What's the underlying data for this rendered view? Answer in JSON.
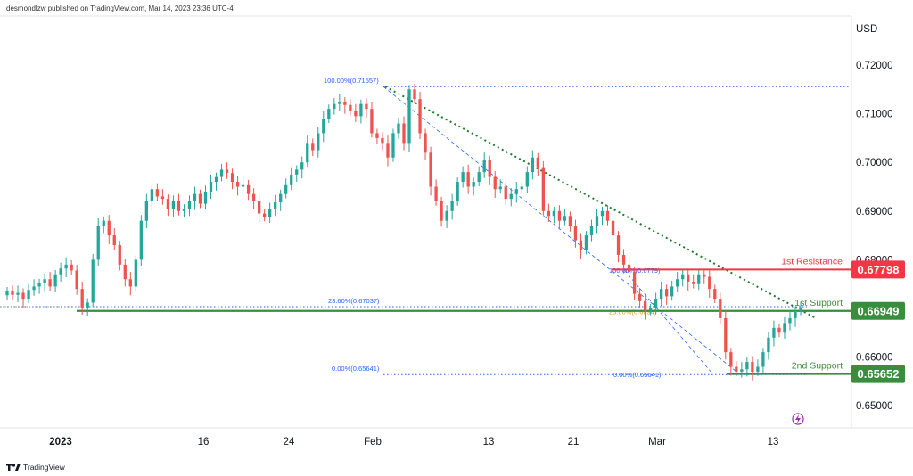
{
  "header": {
    "text": "desmondlzw published on TradingView.com, Mar 14, 2023 23:36 UTC-4"
  },
  "footer": {
    "logo_text": "TradingView"
  },
  "chart_data": {
    "type": "candlestick",
    "currency": "USD",
    "ylim": [
      0.645,
      0.727
    ],
    "y_ticks": [
      "0.72000",
      "0.71000",
      "0.70000",
      "0.69000",
      "0.68000",
      "0.67000",
      "0.66000",
      "0.65000"
    ],
    "x_ticks": [
      "2023",
      "16",
      "24",
      "Feb",
      "13",
      "21",
      "Mar",
      "13"
    ],
    "levels": [
      {
        "name": "1st Resistance",
        "value": 0.67798,
        "label": "0.67798",
        "color": "#f23645"
      },
      {
        "name": "1st Support",
        "value": 0.66949,
        "label": "0.66949",
        "color": "#388e3c"
      },
      {
        "name": "2nd Support",
        "value": 0.65652,
        "label": "0.65652",
        "color": "#388e3c"
      }
    ],
    "fibonacci": [
      {
        "label": "100.00%(0.71557)",
        "value": 0.71557
      },
      {
        "label": "23.60%(0.67037)",
        "value": 0.67037
      },
      {
        "label": "0.00%(0.65641)",
        "value": 0.65641
      }
    ],
    "fibonacci_2": [
      {
        "label": "100.00%(0.6779)",
        "value": 0.6779
      },
      {
        "label": "23.60%(0.6694)",
        "value": 0.6694
      },
      {
        "label": "0.00%(0.65641)",
        "value": 0.65641
      }
    ],
    "trendline": {
      "from": [
        "Feb 2",
        0.71557
      ],
      "to": [
        "Mar 16",
        0.668
      ]
    },
    "price_series": [
      0.6735,
      0.6728,
      0.6732,
      0.672,
      0.6738,
      0.6745,
      0.6752,
      0.676,
      0.6745,
      0.677,
      0.6782,
      0.679,
      0.6778,
      0.674,
      0.6702,
      0.6712,
      0.68,
      0.687,
      0.688,
      0.685,
      0.683,
      0.679,
      0.676,
      0.6745,
      0.68,
      0.688,
      0.692,
      0.6945,
      0.693,
      0.6925,
      0.6905,
      0.692,
      0.69,
      0.6905,
      0.692,
      0.6935,
      0.6915,
      0.694,
      0.696,
      0.697,
      0.6985,
      0.6978,
      0.696,
      0.695,
      0.6955,
      0.6935,
      0.692,
      0.6895,
      0.6888,
      0.6905,
      0.6918,
      0.6935,
      0.6955,
      0.6975,
      0.6985,
      0.7,
      0.704,
      0.7025,
      0.706,
      0.709,
      0.711,
      0.712,
      0.7125,
      0.7118,
      0.7105,
      0.7095,
      0.712,
      0.711,
      0.706,
      0.705,
      0.704,
      0.701,
      0.706,
      0.708,
      0.704,
      0.715,
      0.713,
      0.706,
      0.702,
      0.695,
      0.692,
      0.688,
      0.69,
      0.692,
      0.696,
      0.698,
      0.695,
      0.696,
      0.698,
      0.7005,
      0.697,
      0.6945,
      0.695,
      0.6925,
      0.6935,
      0.6945,
      0.695,
      0.698,
      0.701,
      0.699,
      0.69,
      0.689,
      0.69,
      0.688,
      0.689,
      0.687,
      0.684,
      0.682,
      0.685,
      0.687,
      0.689,
      0.69,
      0.688,
      0.685,
      0.681,
      0.679,
      0.6775,
      0.673,
      0.6715,
      0.6695,
      0.67,
      0.672,
      0.674,
      0.6725,
      0.6745,
      0.676,
      0.677,
      0.6755,
      0.675,
      0.677,
      0.6765,
      0.674,
      0.672,
      0.668,
      0.661,
      0.658,
      0.657,
      0.6575,
      0.659,
      0.657,
      0.658,
      0.661,
      0.664,
      0.666,
      0.665,
      0.667,
      0.668,
      0.6695,
      0.67
    ]
  },
  "accent": {
    "up": "#26a69a",
    "down": "#ef5350",
    "resistance": "#f23645",
    "support": "#388e3c",
    "fib": "#2962ff",
    "trend": "#1b7a2a",
    "lightning": "#9c27b0"
  },
  "icons": {
    "lightning": "lightning-icon",
    "logo": "tradingview-logo-icon"
  }
}
